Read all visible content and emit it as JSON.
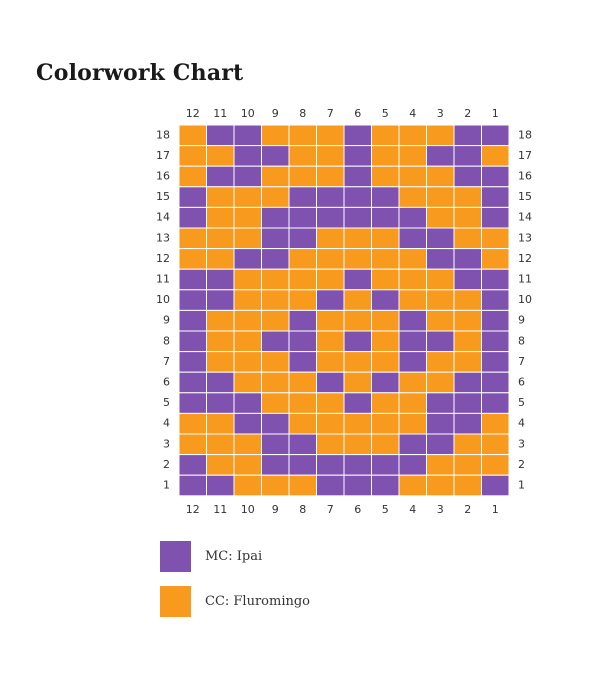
{
  "page": {
    "title": "Colorwork Chart"
  },
  "colors": {
    "mc": "#8052B0",
    "cc": "#F79A1E",
    "grid_line": "#ffffff",
    "label_text": "#333333"
  },
  "legend": [
    {
      "key": "mc",
      "label": "MC: Ipai"
    },
    {
      "key": "cc",
      "label": "CC: Fluromingo"
    }
  ],
  "chart_data": {
    "type": "heatmap",
    "title": "",
    "xlabel": "",
    "ylabel": "",
    "columns": [
      "12",
      "11",
      "10",
      "9",
      "8",
      "7",
      "6",
      "5",
      "4",
      "3",
      "2",
      "1"
    ],
    "rows": [
      "18",
      "17",
      "16",
      "15",
      "14",
      "13",
      "12",
      "11",
      "10",
      "9",
      "8",
      "7",
      "6",
      "5",
      "4",
      "3",
      "2",
      "1"
    ],
    "legend_key": {
      "P": "MC: Ipai",
      "O": "CC: Fluromingo"
    },
    "grid": [
      "OPPOOOPOOOPP",
      "OOPPOOPOOPPO",
      "OPPOOOPOOOPP",
      "POOOPPPPOOOP",
      "POOPPPPPPOOP",
      "OOOPPOOOPPOO",
      "OOPPOOOOOPPO",
      "PPOOOOPOOOPP",
      "PPOOOPOPOOOP",
      "POOOPOOOPOOP",
      "POOPPOPOPPOP",
      "POOOPOOOPOOP",
      "PPOOOPOPOOPP",
      "PPPOOOPOOPPP",
      "OOPPOOOOOPPO",
      "OOOPPOOOPPOO",
      "POOPPPPPPOOO",
      "PPOOOPPPOOOP"
    ]
  }
}
